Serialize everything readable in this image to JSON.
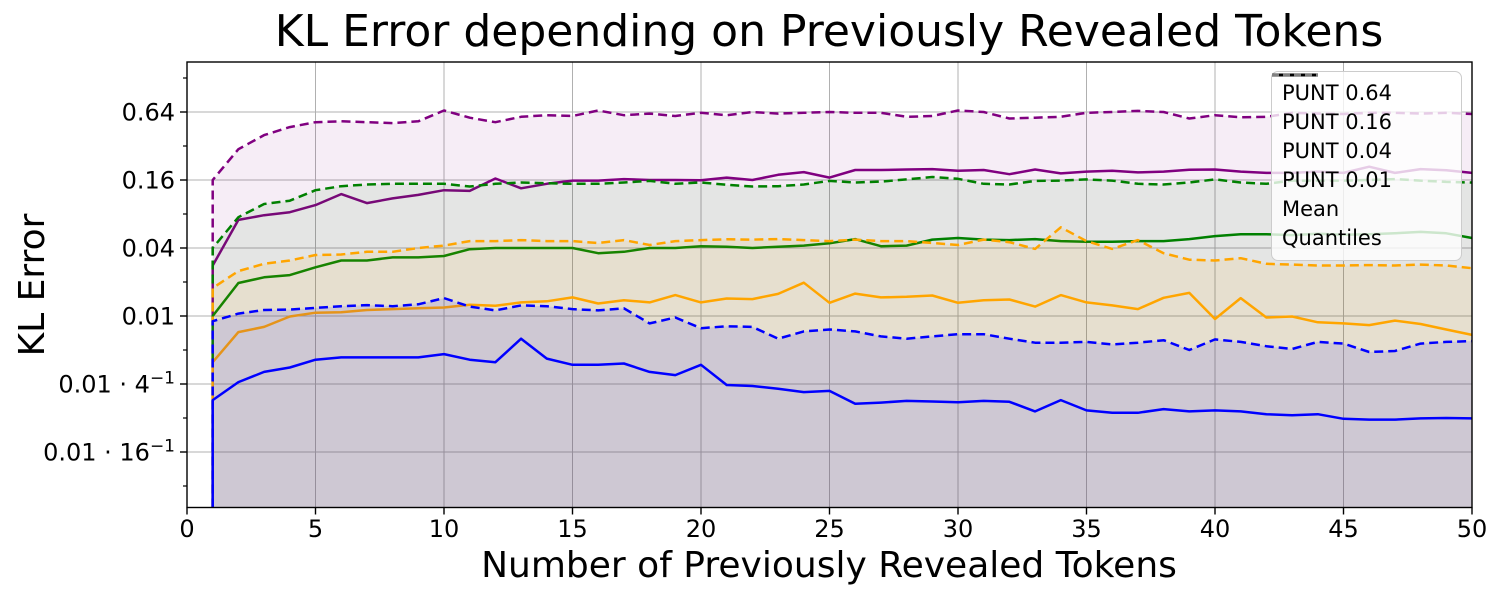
{
  "chart_data": {
    "type": "line",
    "title": "KL Error depending on Previously Revealed Tokens",
    "xlabel": "Number of Previously Revealed Tokens",
    "ylabel": "KL Error",
    "scale_note": "y axis log base 4",
    "xlim": [
      0,
      50
    ],
    "ylim": [
      0.0002,
      1.77
    ],
    "grid": true,
    "grid_color": "#b0b0b0",
    "x_ticks": [
      0,
      5,
      10,
      15,
      20,
      25,
      30,
      35,
      40,
      45,
      50
    ],
    "y_ticks": [
      {
        "label": "0.64",
        "value": 0.64
      },
      {
        "label": "0.16",
        "value": 0.16
      },
      {
        "label": "0.04",
        "value": 0.04
      },
      {
        "label": "0.01",
        "value": 0.01
      },
      {
        "label": "0.01 · 4⁻¹",
        "value": 0.0025
      },
      {
        "label": "0.01 · 16⁻¹",
        "value": 0.000625
      }
    ],
    "y_minor_ticks": [
      1.28,
      0.32,
      0.08,
      0.02,
      0.005,
      0.00125,
      0.0003125
    ],
    "x": [
      1,
      2,
      3,
      4,
      5,
      6,
      7,
      8,
      9,
      10,
      11,
      12,
      13,
      14,
      15,
      16,
      17,
      18,
      19,
      20,
      21,
      22,
      23,
      24,
      25,
      26,
      27,
      28,
      29,
      30,
      31,
      32,
      33,
      34,
      35,
      36,
      37,
      38,
      39,
      40,
      41,
      42,
      43,
      44,
      45,
      46,
      47,
      48,
      49,
      50
    ],
    "series": [
      {
        "name": "PUNT 0.64",
        "color": "#800080",
        "fill_opacity": 0.07,
        "mean": [
          0.028,
          0.071,
          0.078,
          0.083,
          0.096,
          0.12,
          0.1,
          0.11,
          0.118,
          0.13,
          0.128,
          0.165,
          0.135,
          0.148,
          0.158,
          0.158,
          0.163,
          0.16,
          0.16,
          0.159,
          0.168,
          0.16,
          0.178,
          0.188,
          0.168,
          0.196,
          0.196,
          0.198,
          0.2,
          0.193,
          0.196,
          0.18,
          0.198,
          0.183,
          0.19,
          0.193,
          0.187,
          0.19,
          0.197,
          0.198,
          0.19,
          0.185,
          0.185,
          0.19,
          0.185,
          0.21,
          0.185,
          0.2,
          0.195,
          0.185
        ],
        "upper_quantile": [
          0.16,
          0.3,
          0.4,
          0.47,
          0.52,
          0.53,
          0.52,
          0.51,
          0.53,
          0.66,
          0.57,
          0.52,
          0.58,
          0.6,
          0.59,
          0.66,
          0.6,
          0.62,
          0.59,
          0.63,
          0.6,
          0.64,
          0.62,
          0.63,
          0.64,
          0.63,
          0.63,
          0.58,
          0.59,
          0.66,
          0.64,
          0.56,
          0.57,
          0.58,
          0.63,
          0.64,
          0.655,
          0.64,
          0.56,
          0.6,
          0.575,
          0.58,
          0.63,
          0.62,
          0.615,
          0.63,
          0.63,
          0.62,
          0.63,
          0.615
        ]
      },
      {
        "name": "PUNT 0.16",
        "color": "#008000",
        "fill_opacity": 0.07,
        "mean": [
          0.01,
          0.0196,
          0.022,
          0.023,
          0.027,
          0.031,
          0.031,
          0.033,
          0.033,
          0.034,
          0.039,
          0.04,
          0.04,
          0.04,
          0.04,
          0.036,
          0.037,
          0.04,
          0.04,
          0.0415,
          0.041,
          0.04,
          0.041,
          0.042,
          0.044,
          0.048,
          0.0415,
          0.042,
          0.0475,
          0.049,
          0.0475,
          0.047,
          0.048,
          0.046,
          0.0455,
          0.0455,
          0.046,
          0.046,
          0.048,
          0.051,
          0.053,
          0.053,
          0.052,
          0.0535,
          0.0525,
          0.053,
          0.054,
          0.0555,
          0.054,
          0.049
        ],
        "upper_quantile": [
          0.04,
          0.075,
          0.098,
          0.105,
          0.13,
          0.141,
          0.146,
          0.148,
          0.148,
          0.148,
          0.14,
          0.148,
          0.152,
          0.15,
          0.148,
          0.148,
          0.152,
          0.157,
          0.148,
          0.152,
          0.145,
          0.14,
          0.141,
          0.146,
          0.157,
          0.152,
          0.155,
          0.162,
          0.17,
          0.164,
          0.148,
          0.146,
          0.157,
          0.158,
          0.162,
          0.158,
          0.148,
          0.146,
          0.152,
          0.162,
          0.152,
          0.148,
          0.158,
          0.158,
          0.158,
          0.16,
          0.163,
          0.158,
          0.154,
          0.152
        ]
      },
      {
        "name": "PUNT 0.04",
        "color": "#FFA500",
        "fill_opacity": 0.09,
        "mean": [
          0.0039,
          0.0072,
          0.008,
          0.0099,
          0.0107,
          0.0108,
          0.0113,
          0.0115,
          0.0117,
          0.0119,
          0.0126,
          0.0123,
          0.0132,
          0.0135,
          0.0146,
          0.0129,
          0.0138,
          0.0132,
          0.0153,
          0.0132,
          0.0143,
          0.0141,
          0.0157,
          0.0197,
          0.0131,
          0.0158,
          0.0146,
          0.0148,
          0.0152,
          0.0131,
          0.0138,
          0.014,
          0.0121,
          0.0153,
          0.0132,
          0.0124,
          0.0115,
          0.0145,
          0.016,
          0.0094,
          0.0144,
          0.0097,
          0.0099,
          0.0088,
          0.0086,
          0.0083,
          0.0091,
          0.0085,
          0.0076,
          0.0068
        ],
        "upper_quantile": [
          0.0177,
          0.025,
          0.029,
          0.031,
          0.0347,
          0.035,
          0.037,
          0.037,
          0.04,
          0.042,
          0.046,
          0.046,
          0.047,
          0.046,
          0.046,
          0.0443,
          0.047,
          0.0425,
          0.046,
          0.047,
          0.0478,
          0.0475,
          0.048,
          0.047,
          0.046,
          0.0475,
          0.046,
          0.046,
          0.0443,
          0.0425,
          0.0475,
          0.045,
          0.0393,
          0.061,
          0.046,
          0.0393,
          0.047,
          0.036,
          0.0315,
          0.031,
          0.0325,
          0.029,
          0.0285,
          0.028,
          0.028,
          0.0282,
          0.028,
          0.0285,
          0.028,
          0.0265
        ]
      },
      {
        "name": "PUNT 0.01",
        "color": "#0000FF",
        "fill_opacity": 0.1,
        "mean": [
          0.0018,
          0.0026,
          0.0032,
          0.0035,
          0.0041,
          0.0043,
          0.0043,
          0.0043,
          0.0043,
          0.0046,
          0.0041,
          0.0039,
          0.0063,
          0.0042,
          0.0037,
          0.0037,
          0.0038,
          0.0032,
          0.003,
          0.0037,
          0.00245,
          0.0024,
          0.00227,
          0.00212,
          0.00217,
          0.00167,
          0.00171,
          0.00177,
          0.00175,
          0.00172,
          0.00177,
          0.00174,
          0.00143,
          0.0018,
          0.00146,
          0.00139,
          0.00139,
          0.0015,
          0.00143,
          0.00146,
          0.00143,
          0.00135,
          0.00132,
          0.00135,
          0.00123,
          0.00121,
          0.00121,
          0.00124,
          0.00125,
          0.00124
        ],
        "upper_quantile": [
          0.009,
          0.0105,
          0.0113,
          0.0114,
          0.0118,
          0.0122,
          0.0125,
          0.0122,
          0.0127,
          0.0144,
          0.0121,
          0.0112,
          0.0124,
          0.0122,
          0.0115,
          0.0112,
          0.0117,
          0.0086,
          0.0097,
          0.0078,
          0.0081,
          0.008,
          0.0063,
          0.0073,
          0.0076,
          0.0073,
          0.0066,
          0.0063,
          0.0066,
          0.0069,
          0.0069,
          0.0063,
          0.0058,
          0.0058,
          0.0059,
          0.0056,
          0.0058,
          0.0061,
          0.005,
          0.0062,
          0.0059,
          0.0054,
          0.0051,
          0.0059,
          0.0057,
          0.0048,
          0.0049,
          0.0057,
          0.0059,
          0.006
        ]
      }
    ],
    "legend": {
      "position": "upper right",
      "entries": [
        {
          "label": "PUNT 0.64",
          "color": "#800080",
          "dashed": false
        },
        {
          "label": "PUNT 0.16",
          "color": "#008000",
          "dashed": false
        },
        {
          "label": "PUNT 0.04",
          "color": "#FFA500",
          "dashed": false
        },
        {
          "label": "PUNT 0.01",
          "color": "#0000FF",
          "dashed": false
        },
        {
          "label": "Mean",
          "color": "#000000",
          "dashed": false
        },
        {
          "label": "Quantiles",
          "color": "#808080",
          "dashed": true
        }
      ]
    }
  }
}
